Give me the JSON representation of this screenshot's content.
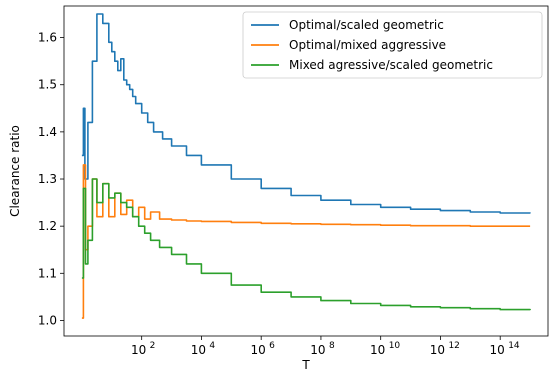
{
  "chart_data": {
    "type": "line",
    "xlabel": "T",
    "ylabel": "Clearance ratio",
    "xscale": "log",
    "xlim_exp": [
      -0.6,
      15.6
    ],
    "ylim": [
      0.967,
      1.667
    ],
    "x_tick_exponents": [
      2,
      4,
      6,
      8,
      10,
      12,
      14
    ],
    "x_tick_base": "10",
    "y_ticks": [
      1.0,
      1.1,
      1.2,
      1.3,
      1.4,
      1.5,
      1.6
    ],
    "y_tick_labels": [
      "1.0",
      "1.1",
      "1.2",
      "1.3",
      "1.4",
      "1.5",
      "1.6"
    ],
    "legend_position": "top-right",
    "grid": false,
    "series": [
      {
        "name": "Optimal/scaled geometric",
        "color": "#1f77b4",
        "x_exp": [
          0.0,
          0.05,
          0.1,
          0.2,
          0.35,
          0.5,
          0.7,
          0.9,
          1.0,
          1.1,
          1.2,
          1.3,
          1.4,
          1.5,
          1.6,
          1.7,
          1.8,
          2.0,
          2.2,
          2.4,
          2.7,
          3.0,
          3.5,
          4.0,
          5.0,
          6.0,
          7.0,
          8.0,
          9.0,
          10.0,
          11.0,
          12.0,
          13.0,
          14.0,
          15.0
        ],
        "y": [
          1.35,
          1.45,
          1.3,
          1.42,
          1.55,
          1.65,
          1.63,
          1.59,
          1.57,
          1.55,
          1.53,
          1.555,
          1.51,
          1.5,
          1.49,
          1.475,
          1.46,
          1.44,
          1.42,
          1.4,
          1.385,
          1.37,
          1.35,
          1.33,
          1.3,
          1.28,
          1.265,
          1.255,
          1.246,
          1.24,
          1.236,
          1.233,
          1.23,
          1.228,
          1.227
        ]
      },
      {
        "name": "Optimal/mixed aggressive",
        "color": "#ff7f0e",
        "x_exp": [
          0.0,
          0.05,
          0.12,
          0.2,
          0.35,
          0.5,
          0.7,
          0.9,
          1.1,
          1.3,
          1.5,
          1.7,
          1.9,
          2.1,
          2.3,
          2.6,
          3.0,
          3.5,
          4.0,
          5.0,
          6.0,
          7.0,
          8.0,
          9.0,
          10.0,
          11.0,
          12.0,
          13.0,
          14.0,
          15.0
        ],
        "y": [
          1.005,
          1.33,
          1.15,
          1.2,
          1.3,
          1.22,
          1.29,
          1.22,
          1.27,
          1.225,
          1.255,
          1.22,
          1.24,
          1.215,
          1.23,
          1.215,
          1.213,
          1.211,
          1.21,
          1.208,
          1.206,
          1.205,
          1.204,
          1.203,
          1.202,
          1.201,
          1.201,
          1.2,
          1.2,
          1.2
        ]
      },
      {
        "name": "Mixed agressive/scaled geometric",
        "color": "#2ca02c",
        "x_exp": [
          0.0,
          0.05,
          0.12,
          0.2,
          0.35,
          0.5,
          0.7,
          0.9,
          1.1,
          1.3,
          1.5,
          1.7,
          1.9,
          2.1,
          2.3,
          2.6,
          3.0,
          3.5,
          4.0,
          5.0,
          6.0,
          7.0,
          8.0,
          9.0,
          10.0,
          11.0,
          12.0,
          13.0,
          14.0,
          15.0
        ],
        "y": [
          1.09,
          1.28,
          1.12,
          1.17,
          1.3,
          1.25,
          1.29,
          1.26,
          1.27,
          1.25,
          1.24,
          1.22,
          1.2,
          1.185,
          1.17,
          1.155,
          1.14,
          1.12,
          1.1,
          1.075,
          1.06,
          1.05,
          1.042,
          1.036,
          1.032,
          1.029,
          1.027,
          1.025,
          1.023,
          1.022
        ]
      }
    ]
  }
}
